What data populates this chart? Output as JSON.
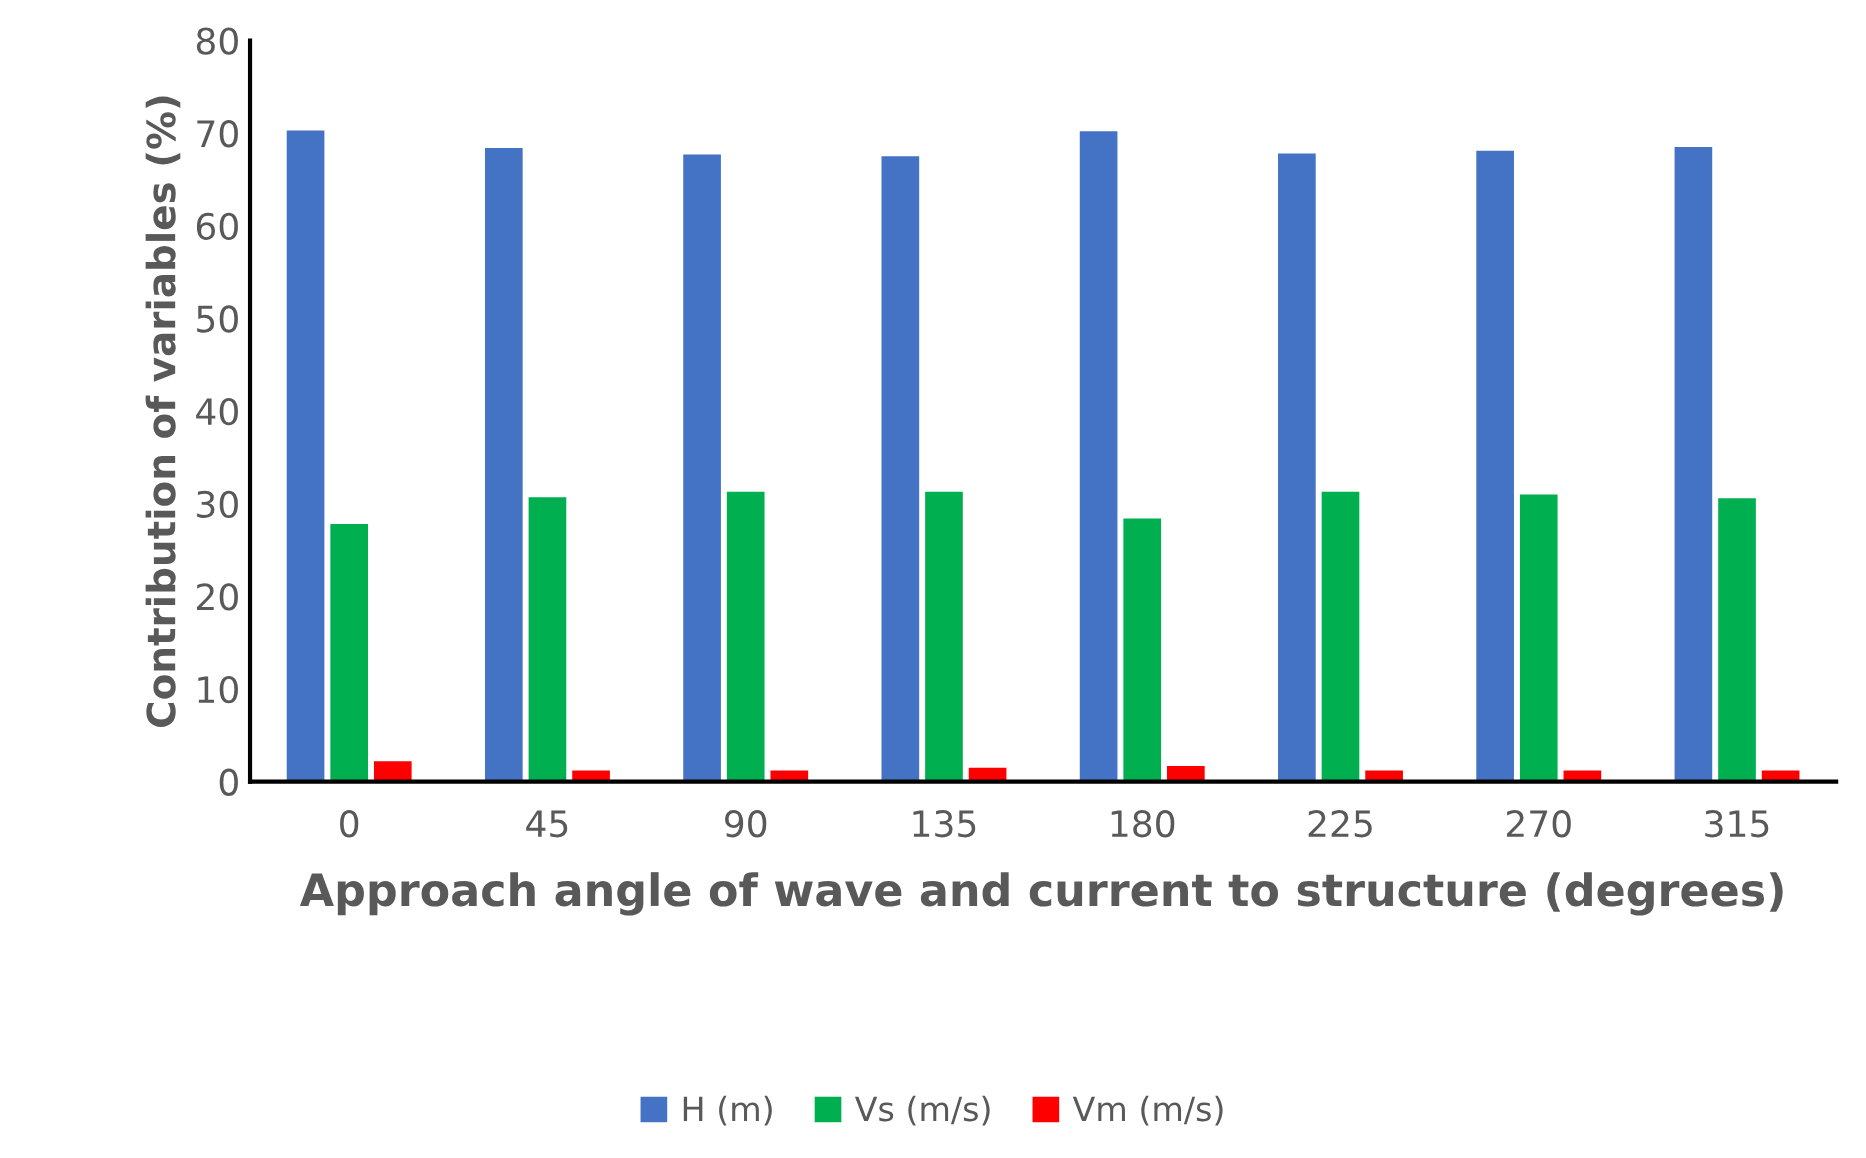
{
  "chart_data": {
    "type": "bar",
    "xlabel": "Approach angle of wave and current to structure (degrees)",
    "ylabel": "Contribution of variables (%)",
    "categories": [
      "0",
      "45",
      "90",
      "135",
      "180",
      "225",
      "270",
      "315"
    ],
    "series": [
      {
        "name": "H (m)",
        "color": "#4472c4",
        "values": [
          70.3,
          68.4,
          67.7,
          67.5,
          70.2,
          67.8,
          68.1,
          68.5
        ]
      },
      {
        "name": "Vs (m/s)",
        "color": "#00b050",
        "values": [
          27.8,
          30.7,
          31.3,
          31.3,
          28.4,
          31.3,
          31.0,
          30.6
        ]
      },
      {
        "name": "Vm (m/s)",
        "color": "#ff0000",
        "values": [
          2.2,
          1.2,
          1.2,
          1.5,
          1.7,
          1.2,
          1.2,
          1.2
        ]
      }
    ],
    "ylim": [
      0,
      80
    ],
    "yticks": [
      0,
      10,
      20,
      30,
      40,
      50,
      60,
      70,
      80
    ],
    "grid": false,
    "legend": "bottom"
  }
}
